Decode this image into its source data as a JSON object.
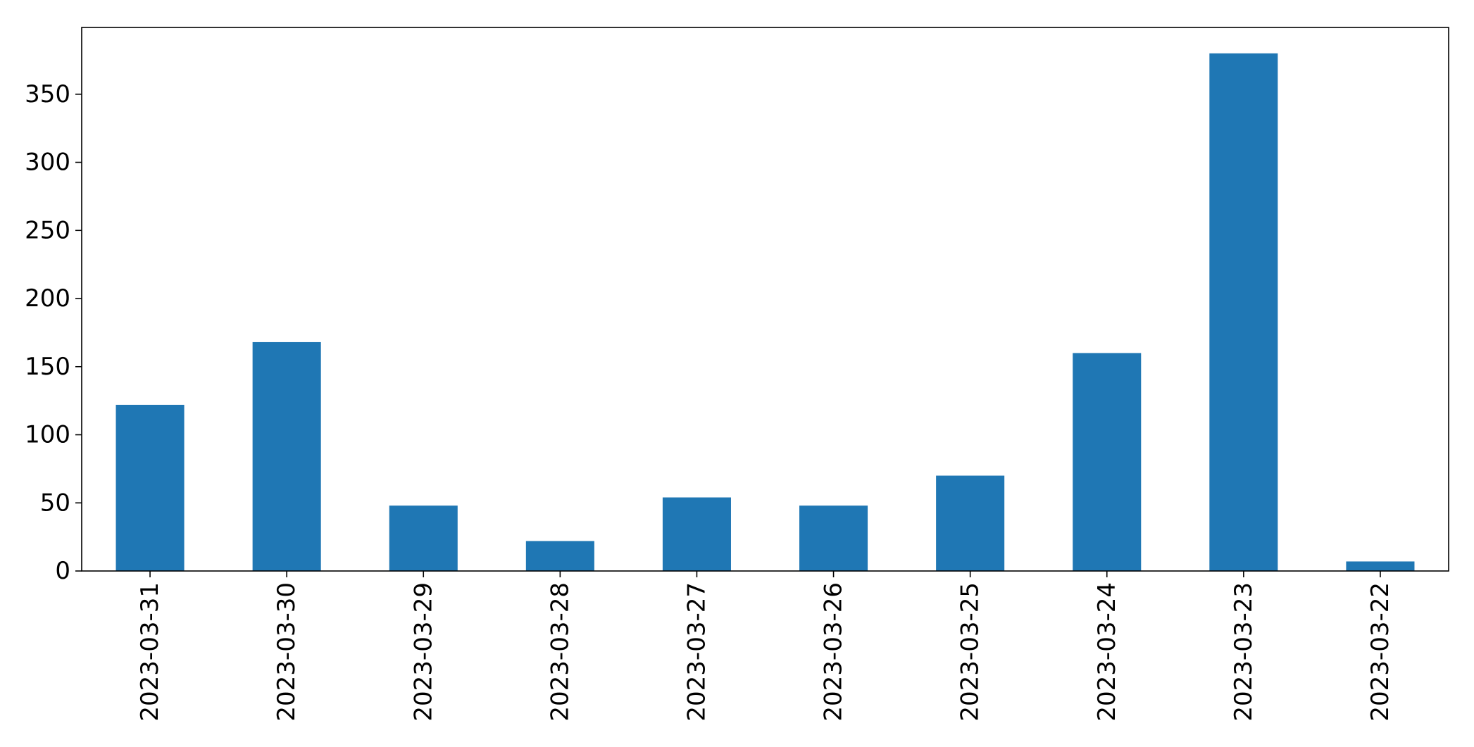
{
  "chart_data": {
    "type": "bar",
    "title": "",
    "xlabel": "",
    "ylabel": "",
    "categories": [
      "2023-03-31",
      "2023-03-30",
      "2023-03-29",
      "2023-03-28",
      "2023-03-27",
      "2023-03-26",
      "2023-03-25",
      "2023-03-24",
      "2023-03-23",
      "2023-03-22"
    ],
    "values": [
      122,
      168,
      48,
      22,
      54,
      48,
      70,
      160,
      380,
      7
    ],
    "ylim": [
      0,
      399
    ],
    "yticks": [
      0,
      50,
      100,
      150,
      200,
      250,
      300,
      350
    ],
    "ytick_labels": [
      "0",
      "50",
      "100",
      "150",
      "200",
      "250",
      "300",
      "350"
    ],
    "grid": false,
    "legend": "none",
    "bar_color": "#1f77b4",
    "axis_color": "#000000"
  }
}
